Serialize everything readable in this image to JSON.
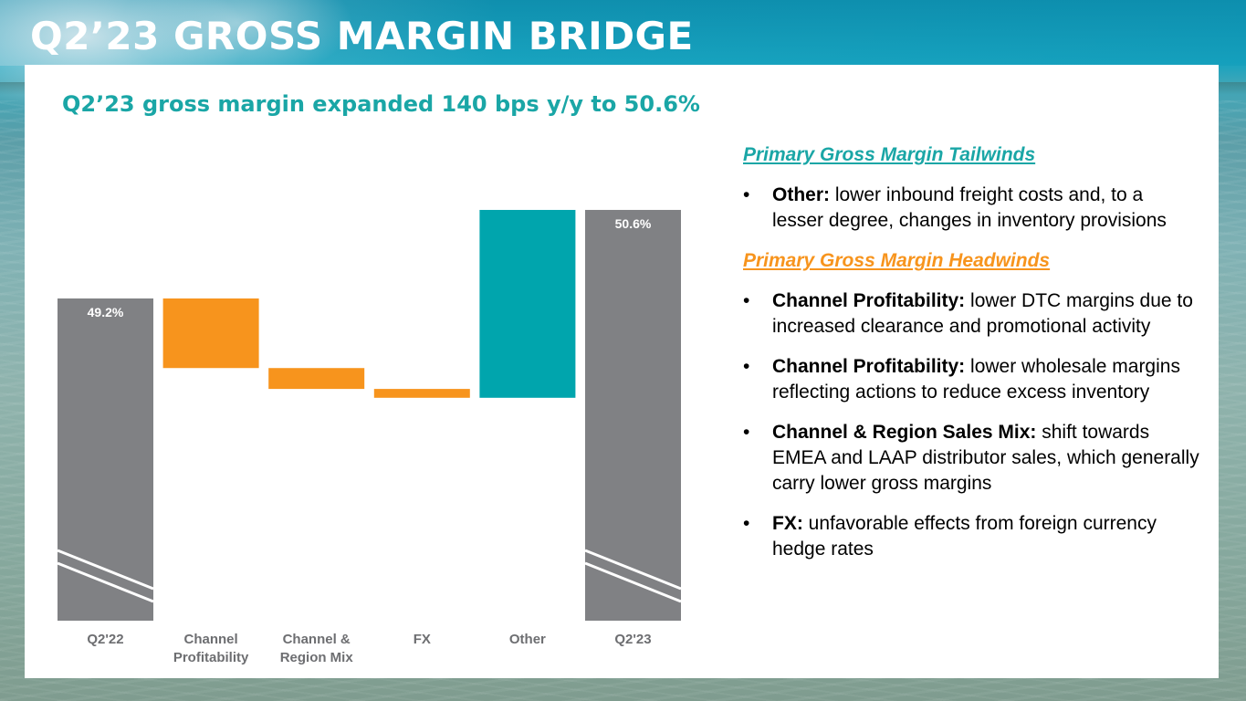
{
  "slide": {
    "title": "Q2’23 GROSS MARGIN BRIDGE",
    "subtitle": "Q2’23 gross margin expanded 140 bps y/y to 50.6%"
  },
  "colors": {
    "total_bar": "#808184",
    "headwind": "#f7941d",
    "tailwind": "#00a5ad",
    "subtitle": "#1aa6a6",
    "axis_label": "#6d6e71"
  },
  "chart_data": {
    "type": "bar",
    "subtype": "waterfall",
    "title": "",
    "xlabel": "",
    "ylabel": "",
    "unit": "%",
    "axis_break": true,
    "grid": false,
    "legend": "none",
    "categories": [
      "Q2'22",
      "Channel\nProfitability",
      "Channel &\nRegion Mix",
      "FX",
      "Other",
      "Q2'23"
    ],
    "category_lines": [
      [
        "Q2'22"
      ],
      [
        "Channel",
        "Profitability"
      ],
      [
        "Channel &",
        "Region Mix"
      ],
      [
        "FX"
      ],
      [
        "Other"
      ],
      [
        "Q2'23"
      ]
    ],
    "values": [
      49.2,
      -1.1,
      -0.33,
      -0.14,
      2.97,
      50.6
    ],
    "kinds": [
      "total",
      "headwind",
      "headwind",
      "headwind",
      "tailwind",
      "total"
    ],
    "data_labels": [
      "49.2%",
      "",
      "",
      "",
      "",
      "50.6%"
    ],
    "ylim": [
      43.0,
      50.6
    ]
  },
  "notes": {
    "tailwinds_heading": "Primary Gross Margin Tailwinds",
    "tailwinds": [
      {
        "bullet": "•",
        "label": "Other:",
        "text": " lower inbound freight costs and, to a lesser degree, changes in inventory provisions"
      }
    ],
    "headwinds_heading": "Primary Gross Margin Headwinds",
    "headwinds": [
      {
        "bullet": "•",
        "label": "Channel Profitability:",
        "text": " lower DTC margins due to increased clearance and promotional activity"
      },
      {
        "bullet": "•",
        "label": "Channel Profitability:",
        "text": " lower wholesale margins reflecting actions to reduce excess inventory"
      },
      {
        "bullet": "•",
        "label": "Channel & Region Sales Mix:",
        "text": " shift towards EMEA and LAAP distributor sales, which generally carry lower gross margins"
      },
      {
        "bullet": "•",
        "label": "FX:",
        "text": " unfavorable effects from foreign currency hedge rates"
      }
    ]
  }
}
